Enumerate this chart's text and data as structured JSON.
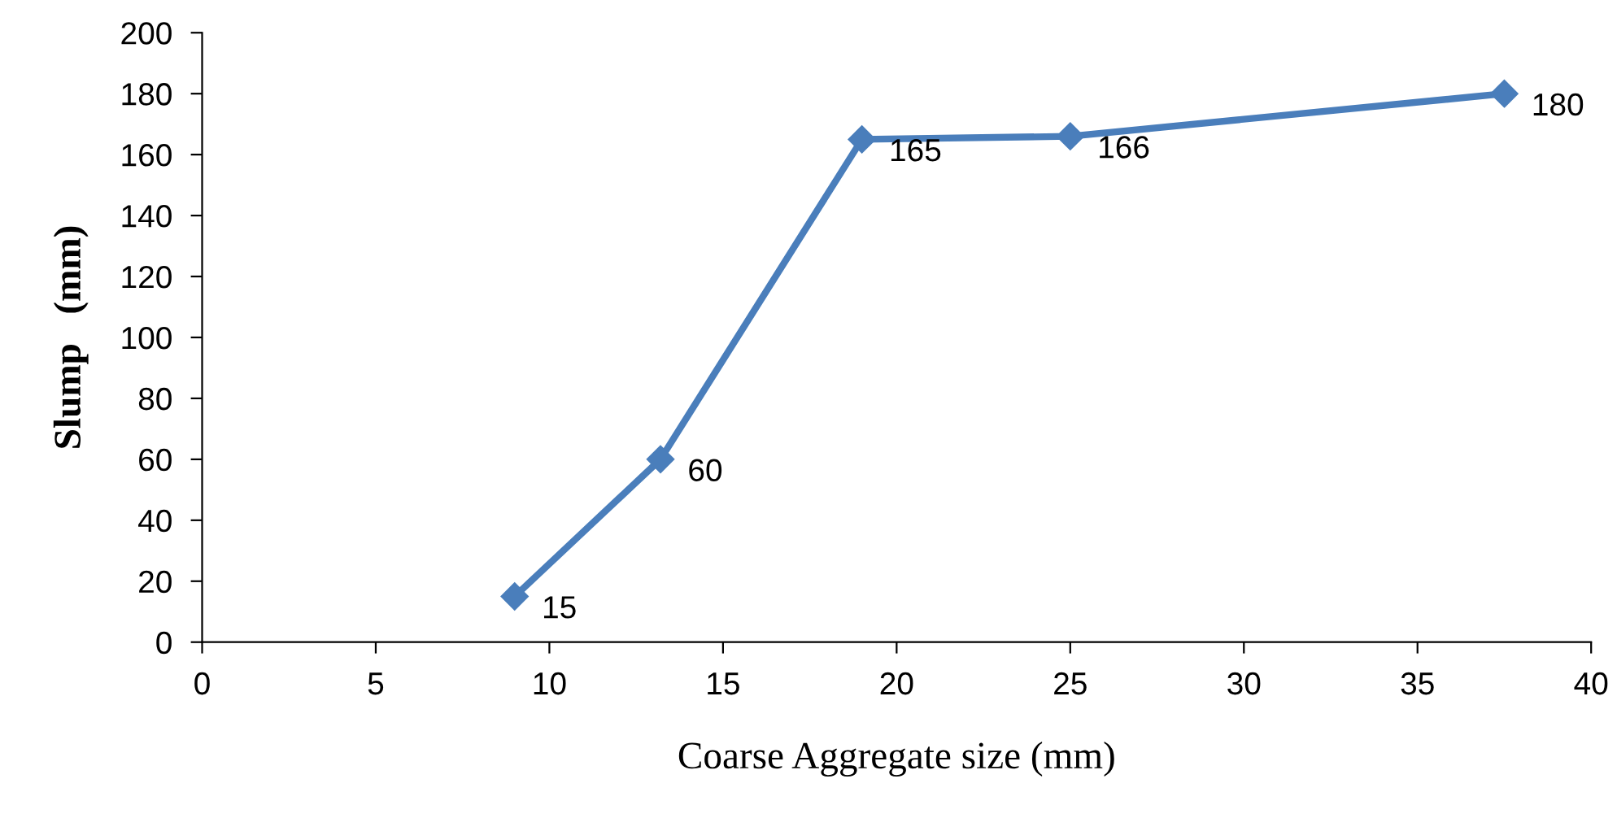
{
  "chart_data": {
    "type": "line",
    "xlabel": "Coarse Aggregate size (mm)",
    "ylabel": "Slump   (mm)",
    "x": [
      9,
      13.2,
      19,
      25,
      37.5
    ],
    "series": [
      {
        "color": "#4a7ebb",
        "values": [
          15,
          60,
          165,
          166,
          180
        ]
      }
    ],
    "xlim": [
      0,
      40
    ],
    "xticks": [
      0,
      5,
      10,
      15,
      20,
      25,
      30,
      35,
      40
    ],
    "ylim": [
      0,
      200
    ],
    "yticks": [
      0,
      20,
      40,
      60,
      80,
      100,
      120,
      140,
      160,
      180,
      200
    ],
    "grid": false,
    "legend": false,
    "marker": "diamond",
    "line_style": "solid",
    "data_labels": true
  }
}
